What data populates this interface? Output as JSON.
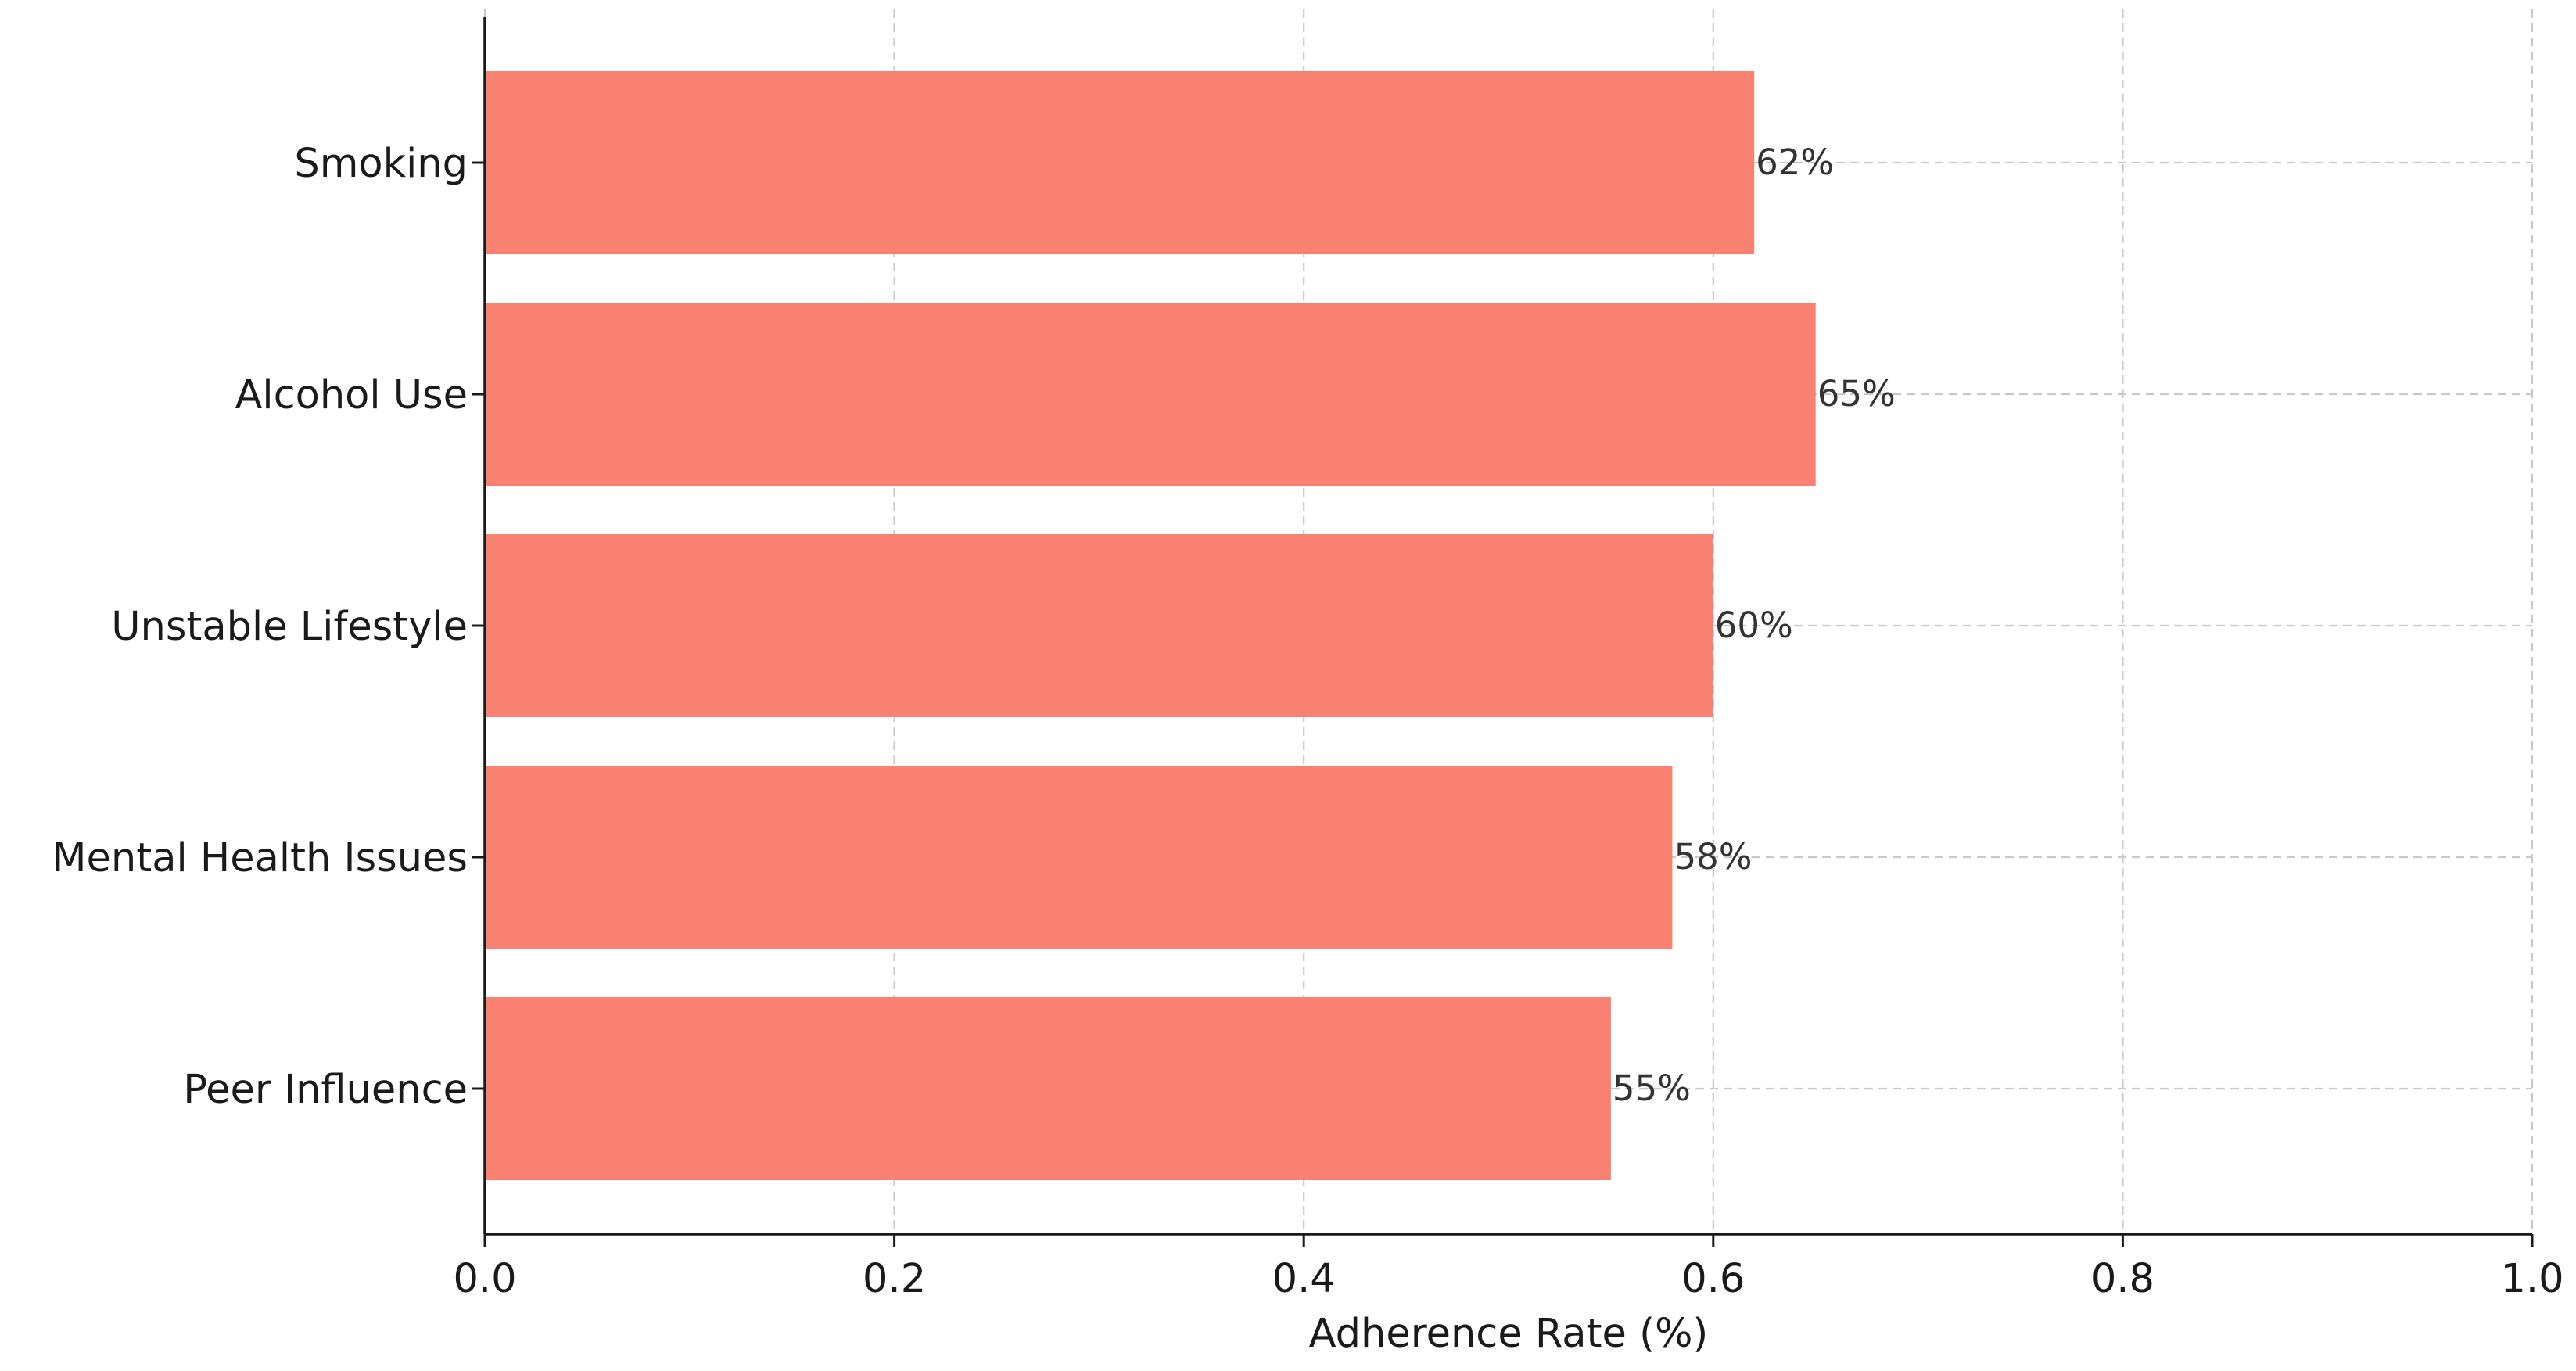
{
  "chart_data": {
    "type": "bar",
    "orientation": "horizontal",
    "title": "",
    "xlabel": "Adherence Rate (%)",
    "ylabel": "",
    "categories": [
      "Smoking",
      "Alcohol Use",
      "Unstable Lifestyle",
      "Mental Health Issues",
      "Peer Influence"
    ],
    "values": [
      0.62,
      0.65,
      0.6,
      0.58,
      0.55
    ],
    "data_labels": [
      "62%",
      "65%",
      "60%",
      "58%",
      "55%"
    ],
    "xlim": [
      0.0,
      1.0
    ],
    "x_ticks": [
      0.0,
      0.2,
      0.4,
      0.6,
      0.8,
      1.0
    ],
    "x_tick_labels": [
      "0.0",
      "0.2",
      "0.4",
      "0.6",
      "0.8",
      "1.0"
    ],
    "grid": true,
    "grid_style": "dashed",
    "bar_color": "#f98172",
    "legend": "none"
  }
}
